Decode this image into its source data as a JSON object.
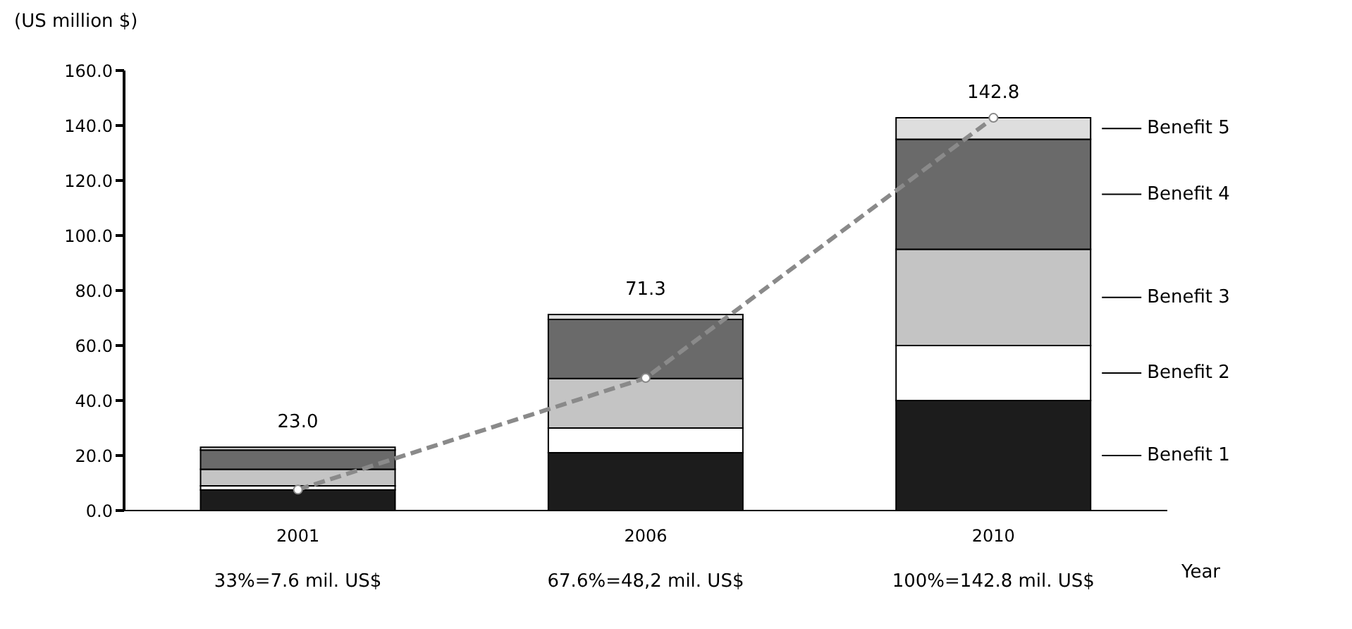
{
  "chart_data": {
    "type": "bar",
    "stacked": true,
    "ylabel": "(US million $)",
    "xlabel": "Year",
    "categories": [
      "2001",
      "2006",
      "2010"
    ],
    "series": [
      {
        "name": "Benefit  1",
        "color": "#1c1c1c",
        "values": [
          7.5,
          21,
          40
        ]
      },
      {
        "name": "Benefit  2",
        "color": "#ffffff",
        "values": [
          1.5,
          9,
          20
        ]
      },
      {
        "name": "Benefit  3",
        "color": "#c4c4c4",
        "values": [
          6,
          18,
          35
        ]
      },
      {
        "name": "Benefit  4",
        "color": "#6a6a6a",
        "values": [
          7,
          21.5,
          40
        ]
      },
      {
        "name": "Benefit  5",
        "color": "#dedede",
        "values": [
          1,
          1.8,
          7.8
        ]
      },
      {
        "type": "line",
        "color": "#8a8a8a",
        "values": [
          7.6,
          48.2,
          142.8
        ],
        "line_style": "dashed",
        "marker": "circle"
      }
    ],
    "totals": [
      "23.0",
      "71.3",
      "142.8"
    ],
    "ylim": [
      0,
      160
    ],
    "yticks": [
      {
        "value": 0,
        "label": "0.0"
      },
      {
        "value": 20,
        "label": "20.0"
      },
      {
        "value": 40,
        "label": "40.0"
      },
      {
        "value": 60,
        "label": "60.0"
      },
      {
        "value": 80,
        "label": "80.0"
      },
      {
        "value": 100,
        "label": "100.0"
      },
      {
        "value": 120,
        "label": "120.0"
      },
      {
        "value": 140,
        "label": "140.0"
      },
      {
        "value": 160,
        "label": "160.0"
      }
    ],
    "annotations": [
      "33%=7.6 mil. US$",
      "67.6%=48,2 mil. US$",
      "100%=142.8 mil. US$"
    ],
    "grid": false,
    "legend": "right"
  }
}
